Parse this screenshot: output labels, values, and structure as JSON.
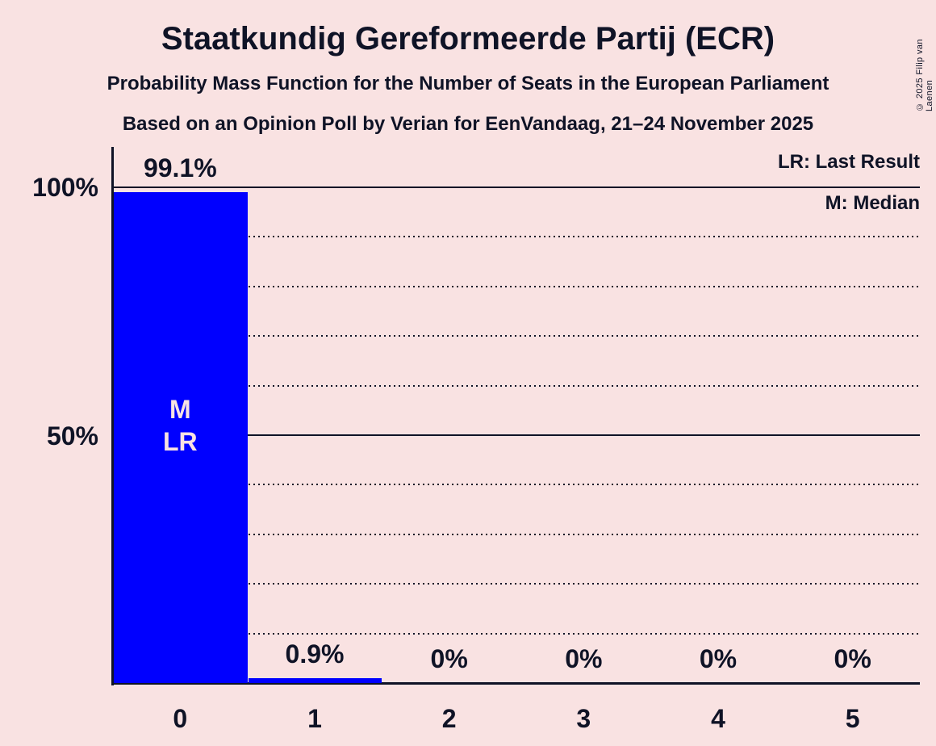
{
  "chart_data": {
    "type": "bar",
    "title": "Staatkundig Gereformeerde Partij (ECR)",
    "subtitle": "Probability Mass Function for the Number of Seats in the European Parliament",
    "source": "Based on an Opinion Poll by Verian for EenVandaag, 21–24 November 2025",
    "copyright": "© 2025 Filip van Laenen",
    "categories": [
      "0",
      "1",
      "2",
      "3",
      "4",
      "5"
    ],
    "values": [
      99.1,
      0.9,
      0,
      0,
      0,
      0
    ],
    "value_labels": [
      "99.1%",
      "0.9%",
      "0%",
      "0%",
      "0%",
      "0%"
    ],
    "ylim": [
      0,
      100
    ],
    "y_axis_labels": [
      {
        "text": "100%",
        "pct": 100
      },
      {
        "text": "50%",
        "pct": 50
      }
    ],
    "gridlines": {
      "dotted_pct": [
        10,
        20,
        30,
        40,
        60,
        70,
        80,
        90
      ],
      "solid_pct": [
        50,
        100
      ]
    },
    "legend": [
      "LR: Last Result",
      "M: Median"
    ],
    "legend_position": "top-right",
    "bar_annotations": [
      {
        "index": 0,
        "lines": [
          "M",
          "LR"
        ]
      }
    ],
    "colors": {
      "bar": "#0000ff",
      "background": "#f9e2e2",
      "text": "#0f1326",
      "annotation_text": "#f9e2e2"
    }
  }
}
